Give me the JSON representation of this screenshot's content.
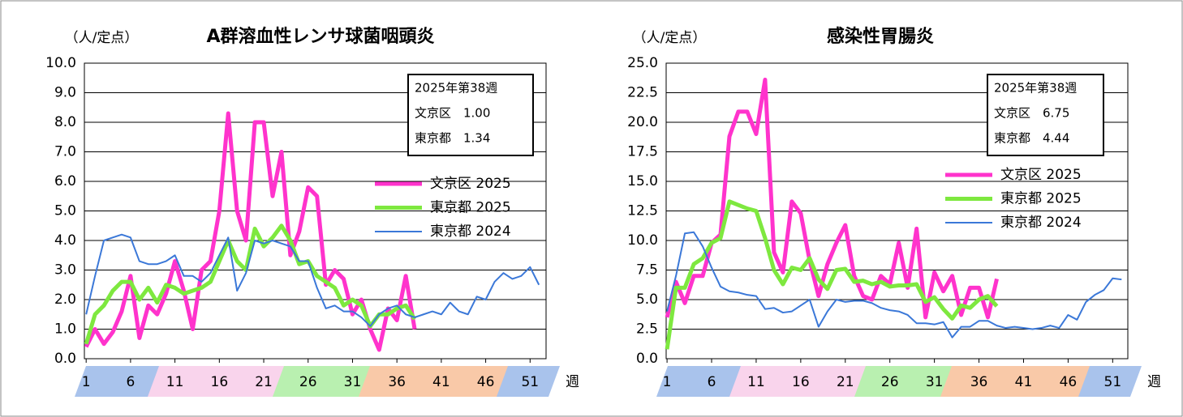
{
  "chart_data": [
    {
      "type": "line",
      "title": "A群溶血性レンサ球菌咽頭炎",
      "y_label": "（人/定点）",
      "x_label": "週",
      "annotation": [
        "2025年第38週",
        "文京区　1.00",
        "東京都　1.34"
      ],
      "x": [
        1,
        2,
        3,
        4,
        5,
        6,
        7,
        8,
        9,
        10,
        11,
        12,
        13,
        14,
        15,
        16,
        17,
        18,
        19,
        20,
        21,
        22,
        23,
        24,
        25,
        26,
        27,
        28,
        29,
        30,
        31,
        32,
        33,
        34,
        35,
        36,
        37,
        38,
        39,
        40,
        41,
        42,
        43,
        44,
        45,
        46,
        47,
        48,
        49,
        50,
        51,
        52
      ],
      "xlim": [
        0.8,
        52.8
      ],
      "xticks": [
        1,
        6,
        11,
        16,
        21,
        26,
        31,
        36,
        41,
        46,
        51
      ],
      "ylim": [
        0,
        10
      ],
      "yticks": [
        {
          "value": 0,
          "label": "0.0"
        },
        {
          "value": 1,
          "label": "1.0"
        },
        {
          "value": 2,
          "label": "2.0"
        },
        {
          "value": 3,
          "label": "3.0"
        },
        {
          "value": 4,
          "label": "4.0"
        },
        {
          "value": 5,
          "label": "5.0"
        },
        {
          "value": 6,
          "label": "6.0"
        },
        {
          "value": 7,
          "label": "7.0"
        },
        {
          "value": 8,
          "label": "8.0"
        },
        {
          "value": 9,
          "label": "9.0"
        },
        {
          "value": 10,
          "label": "10.0"
        }
      ],
      "grid": true,
      "series": [
        {
          "name": "文京区 2025",
          "color": "#ff33cc",
          "values": [
            0.4,
            1.0,
            0.5,
            0.9,
            1.6,
            2.8,
            0.7,
            1.8,
            1.5,
            2.2,
            3.3,
            2.3,
            1.0,
            3.0,
            3.3,
            5.0,
            8.3,
            5.0,
            4.0,
            8.0,
            8.0,
            5.5,
            7.0,
            3.5,
            4.3,
            5.8,
            5.5,
            2.5,
            3.0,
            2.7,
            1.5,
            2.0,
            1.0,
            0.3,
            1.7,
            1.3,
            2.8,
            1.0,
            null,
            null,
            null,
            null,
            null,
            null,
            null,
            null,
            null,
            null,
            null,
            null,
            null,
            null
          ]
        },
        {
          "name": "東京都 2025",
          "color": "#7ee83f",
          "values": [
            0.5,
            1.5,
            1.8,
            2.3,
            2.6,
            2.6,
            2.0,
            2.4,
            1.9,
            2.5,
            2.4,
            2.2,
            2.3,
            2.4,
            2.6,
            3.3,
            4.0,
            3.3,
            3.0,
            4.4,
            3.8,
            4.1,
            4.5,
            4.0,
            3.2,
            3.3,
            2.8,
            2.6,
            2.4,
            1.8,
            2.0,
            1.8,
            1.1,
            1.5,
            1.5,
            1.7,
            1.8,
            1.34,
            null,
            null,
            null,
            null,
            null,
            null,
            null,
            null,
            null,
            null,
            null,
            null,
            null,
            null
          ]
        },
        {
          "name": "東京都 2024",
          "color": "#3b78d8",
          "values": [
            1.5,
            2.8,
            4.0,
            4.1,
            4.2,
            4.1,
            3.3,
            3.2,
            3.2,
            3.3,
            3.5,
            2.8,
            2.8,
            2.6,
            2.9,
            3.5,
            4.1,
            2.3,
            2.9,
            4.0,
            3.9,
            4.0,
            3.9,
            3.8,
            3.3,
            3.3,
            2.4,
            1.7,
            1.8,
            1.6,
            1.6,
            1.4,
            1.1,
            1.5,
            1.7,
            1.8,
            1.5,
            1.4,
            1.5,
            1.6,
            1.5,
            1.9,
            1.6,
            1.5,
            2.1,
            2.0,
            2.6,
            2.9,
            2.7,
            2.8,
            3.1,
            2.5
          ]
        }
      ]
    },
    {
      "type": "line",
      "title": "感染性胃腸炎",
      "y_label": "（人/定点）",
      "x_label": "週",
      "annotation": [
        "2025年第38週",
        "文京区　6.75",
        "東京都　4.44"
      ],
      "x": [
        1,
        2,
        3,
        4,
        5,
        6,
        7,
        8,
        9,
        10,
        11,
        12,
        13,
        14,
        15,
        16,
        17,
        18,
        19,
        20,
        21,
        22,
        23,
        24,
        25,
        26,
        27,
        28,
        29,
        30,
        31,
        32,
        33,
        34,
        35,
        36,
        37,
        38,
        39,
        40,
        41,
        42,
        43,
        44,
        45,
        46,
        47,
        48,
        49,
        50,
        51,
        52
      ],
      "xlim": [
        0.9,
        52.7
      ],
      "xticks": [
        1,
        6,
        11,
        16,
        21,
        26,
        31,
        36,
        41,
        46,
        51
      ],
      "ylim": [
        0,
        25
      ],
      "yticks": [
        {
          "value": 0,
          "label": "0.0"
        },
        {
          "value": 2.5,
          "label": "2.5"
        },
        {
          "value": 5,
          "label": "5.0"
        },
        {
          "value": 7.5,
          "label": "7.5"
        },
        {
          "value": 10,
          "label": "10.0"
        },
        {
          "value": 12.5,
          "label": "12.5"
        },
        {
          "value": 15,
          "label": "15.0"
        },
        {
          "value": 17.5,
          "label": "17.5"
        },
        {
          "value": 20,
          "label": "20.0"
        },
        {
          "value": 22.5,
          "label": "22.5"
        },
        {
          "value": 25,
          "label": "25.0"
        }
      ],
      "grid": true,
      "series": [
        {
          "name": "文京区 2025",
          "color": "#ff33cc",
          "values": [
            3.5,
            6.5,
            4.7,
            7.0,
            7.0,
            9.8,
            10.5,
            18.8,
            20.9,
            20.9,
            19.0,
            23.6,
            9.0,
            7.3,
            13.3,
            12.3,
            8.3,
            5.3,
            8.0,
            9.8,
            11.3,
            7.0,
            5.3,
            5.0,
            7.0,
            6.3,
            9.8,
            6.0,
            11.0,
            3.5,
            7.3,
            5.7,
            7.0,
            3.7,
            6.0,
            6.0,
            3.5,
            6.75,
            null,
            null,
            null,
            null,
            null,
            null,
            null,
            null,
            null,
            null,
            null,
            null,
            null,
            null
          ]
        },
        {
          "name": "東京都 2025",
          "color": "#7ee83f",
          "values": [
            0.8,
            6.0,
            6.0,
            8.0,
            8.5,
            9.8,
            10.2,
            13.3,
            13.0,
            12.7,
            12.5,
            10.2,
            7.5,
            6.3,
            7.7,
            7.5,
            8.5,
            6.7,
            5.9,
            7.5,
            7.6,
            6.5,
            6.6,
            6.3,
            6.5,
            6.1,
            6.2,
            6.2,
            6.3,
            4.8,
            5.2,
            4.2,
            3.4,
            4.5,
            4.3,
            5.0,
            5.3,
            4.44,
            null,
            null,
            null,
            null,
            null,
            null,
            null,
            null,
            null,
            null,
            null,
            null,
            null,
            null
          ]
        },
        {
          "name": "東京都 2024",
          "color": "#3b78d8",
          "values": [
            4.0,
            7.0,
            10.6,
            10.7,
            9.5,
            7.7,
            6.1,
            5.7,
            5.6,
            5.4,
            5.3,
            4.2,
            4.3,
            3.9,
            4.0,
            4.5,
            5.0,
            2.7,
            4.0,
            5.0,
            4.8,
            4.9,
            4.9,
            4.7,
            4.3,
            4.1,
            4.0,
            3.7,
            3.0,
            3.0,
            2.9,
            3.1,
            1.8,
            2.7,
            2.7,
            3.2,
            3.2,
            2.8,
            2.6,
            2.7,
            2.6,
            2.5,
            2.6,
            2.8,
            2.6,
            3.7,
            3.3,
            4.8,
            5.4,
            5.8,
            6.8,
            6.7
          ]
        }
      ]
    }
  ]
}
